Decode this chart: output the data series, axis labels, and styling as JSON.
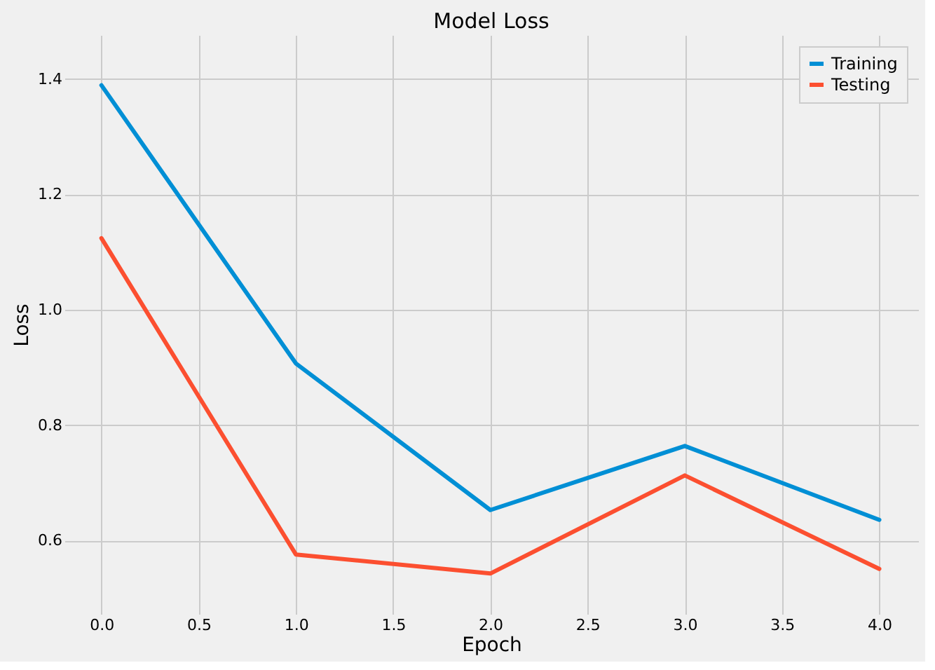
{
  "chart_data": {
    "type": "line",
    "title": "Model Loss",
    "xlabel": "Epoch",
    "ylabel": "Loss",
    "x": [
      0,
      1,
      2,
      3,
      4
    ],
    "series": [
      {
        "name": "Training",
        "color": "#008fd5",
        "values": [
          1.389,
          0.907,
          0.653,
          0.764,
          0.636
        ]
      },
      {
        "name": "Testing",
        "color": "#fc4f30",
        "values": [
          1.124,
          0.576,
          0.543,
          0.713,
          0.551
        ]
      }
    ],
    "xlim": [
      -0.19,
      4.2
    ],
    "ylim": [
      0.473,
      1.476
    ],
    "xticks": [
      {
        "value": 0,
        "label": "0.0"
      },
      {
        "value": 0.5,
        "label": "0.5"
      },
      {
        "value": 1,
        "label": "1.0"
      },
      {
        "value": 1.5,
        "label": "1.5"
      },
      {
        "value": 2,
        "label": "2.0"
      },
      {
        "value": 2.5,
        "label": "2.5"
      },
      {
        "value": 3,
        "label": "3.0"
      },
      {
        "value": 3.5,
        "label": "3.5"
      },
      {
        "value": 4,
        "label": "4.0"
      }
    ],
    "yticks": [
      {
        "value": 0.6,
        "label": "0.6"
      },
      {
        "value": 0.8,
        "label": "0.8"
      },
      {
        "value": 1.0,
        "label": "1.0"
      },
      {
        "value": 1.2,
        "label": "1.2"
      },
      {
        "value": 1.4,
        "label": "1.4"
      }
    ],
    "grid": true,
    "legend": "top right",
    "marker": "none",
    "line_style": "solid"
  }
}
